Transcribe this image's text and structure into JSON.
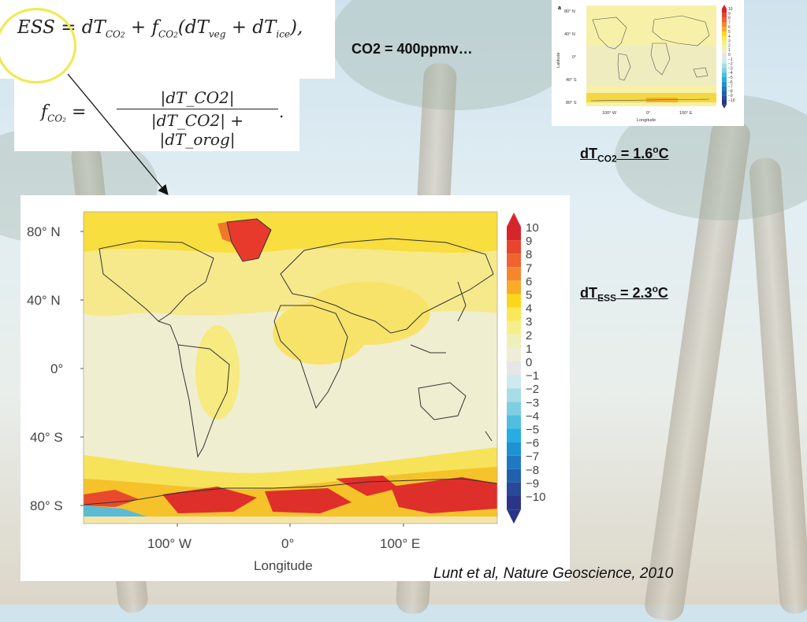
{
  "equations": {
    "ess": "ESS = dT_CO2 + f_CO2(dT_veg + dT_ice),",
    "ess_parts": {
      "lhs": "ESS = dT",
      "t1": "CO",
      "t1sub": "2",
      "plus": " + f",
      "f_sub": "CO",
      "f_sub2": "2",
      "rest": "(dT",
      "veg": "veg",
      "plus2": " + dT",
      "ice": "ice",
      "end": "),"
    },
    "fco2_lhs": "f",
    "fco2_lhs_sub": "CO₂",
    "fco2_num": "|dT_CO2|",
    "fco2_den": "|dT_CO2| + |dT_orog|",
    "fco2_end": "."
  },
  "labels": {
    "co2": "CO2 = 400ppmv…",
    "dtco2_main": "dT",
    "dtco2_sub": "CO2",
    "dtco2_val": " = 1.6",
    "dtco2_sup": "o",
    "dtco2_unit": "C",
    "dtess_main": "dT",
    "dtess_sub": "ESS",
    "dtess_val": " = 2.3",
    "dtess_sup": "o",
    "dtess_unit": "C",
    "citation": "Lunt et al, Nature Geoscience, 2010"
  },
  "main_map": {
    "y_ticks": [
      "80° N",
      "40° N",
      "0°",
      "40° S",
      "80° S"
    ],
    "x_ticks": [
      "100° W",
      "0°",
      "100° E"
    ],
    "xlabel": "Longitude",
    "colorbar": [
      "10",
      "9",
      "8",
      "7",
      "6",
      "5",
      "4",
      "3",
      "2",
      "1",
      "0",
      "−1",
      "−2",
      "−3",
      "−4",
      "−5",
      "−6",
      "−7",
      "−8",
      "−9",
      "−10"
    ]
  },
  "small_map": {
    "panel_letter": "a",
    "y_ticks": [
      "80° N",
      "40° N",
      "0°",
      "40° S",
      "80° S"
    ],
    "x_ticks": [
      "100° W",
      "0°",
      "100° E"
    ],
    "xlabel": "Longitude",
    "ylabel": "Latitude",
    "colorbar": [
      "10",
      "9",
      "8",
      "7",
      "6",
      "5",
      "4",
      "3",
      "2",
      "1",
      "0",
      "−1",
      "−2",
      "−3",
      "−4",
      "−5",
      "−6",
      "−7",
      "−8",
      "−9",
      "−10"
    ]
  },
  "colors": {
    "warm": [
      "#d7262b",
      "#e8452c",
      "#f0622e",
      "#f5862f",
      "#f9ac28",
      "#fbd71c",
      "#f8e85a",
      "#f4ef88",
      "#efefb8",
      "#eeeed8"
    ],
    "neutral": "#e6e6e6",
    "cool": [
      "#cdeaf0",
      "#a8dde8",
      "#7fcfe2",
      "#4fbfe0",
      "#27ade2",
      "#1e93d4",
      "#1f78c2",
      "#2160ad",
      "#28489a",
      "#2b3588"
    ]
  }
}
